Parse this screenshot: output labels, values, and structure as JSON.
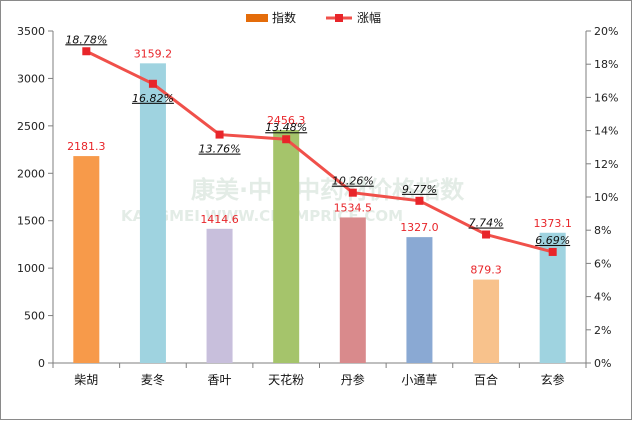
{
  "chart_data": {
    "type": "bar",
    "title": "",
    "xlabel": "",
    "ylabel": "",
    "categories": [
      "柴胡",
      "麦冬",
      "香叶",
      "天花粉",
      "丹参",
      "小通草",
      "百合",
      "玄参"
    ],
    "series": [
      {
        "name": "指数",
        "type": "bar",
        "axis": "left",
        "values": [
          2181.3,
          3159.2,
          1414.6,
          2456.3,
          1534.5,
          1327.0,
          879.3,
          1373.1
        ],
        "value_labels": [
          "2181.3",
          "3159.2",
          "1414.6",
          "2456.3",
          "1534.5",
          "1327.0",
          "879.3",
          "1373.1"
        ],
        "colors": [
          "#f79a4a",
          "#9fd3e0",
          "#c8bfdc",
          "#a5c46b",
          "#d98a8c",
          "#8aa9d3",
          "#f8c28c",
          "#9fd3e0"
        ]
      },
      {
        "name": "涨幅",
        "type": "line",
        "axis": "right",
        "values": [
          18.78,
          16.82,
          13.76,
          13.48,
          10.26,
          9.77,
          7.74,
          6.69
        ],
        "value_labels": [
          "18.78%",
          "16.82%",
          "13.76%",
          "13.48%",
          "10.26%",
          "9.77%",
          "7.74%",
          "6.69%"
        ],
        "color": "#f0504a"
      }
    ],
    "y_left": {
      "ylim": [
        0,
        3500
      ],
      "ticks": [
        0,
        500,
        1000,
        1500,
        2000,
        2500,
        3000,
        3500
      ],
      "tick_labels": [
        "0",
        "500",
        "1000",
        "1500",
        "2000",
        "2500",
        "3000",
        "3500"
      ]
    },
    "y_right": {
      "ylim": [
        0,
        20
      ],
      "ticks": [
        0,
        2,
        4,
        6,
        8,
        10,
        12,
        14,
        16,
        18,
        20
      ],
      "tick_labels": [
        "0%",
        "2%",
        "4%",
        "6%",
        "8%",
        "10%",
        "12%",
        "14%",
        "16%",
        "18%",
        "20%"
      ]
    },
    "grid": false,
    "legend": {
      "position": "top-center",
      "bar_color": "#e46c0a",
      "line_color": "#f0504a"
    },
    "watermark": {
      "line1": "康美·中国中药材价格指数",
      "line2": "KANGMEI WWW.CNKMPRICE.COM"
    }
  }
}
